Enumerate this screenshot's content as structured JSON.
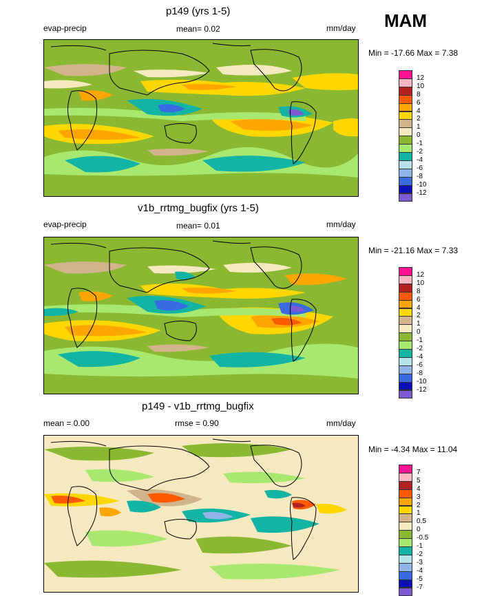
{
  "season": "MAM",
  "colors": {
    "m12": "#7b5ad2",
    "m10": "#0a10b4",
    "m8": "#3a6ae0",
    "m6": "#8fb4e8",
    "m4": "#b7e2e8",
    "m2": "#14b4a4",
    "m1": "#a8e870",
    "z": "#8ab833",
    "p0": "#f6e8bf",
    "p1": "#d2b48c",
    "p2": "#ffd700",
    "p4": "#ffa500",
    "p6": "#ff5a00",
    "p8": "#b22222",
    "p10": "#ffb6c1",
    "p12": "#ff1493"
  },
  "panels": [
    {
      "title": "p149 (yrs 1-5)",
      "left": "evap-precip",
      "center": "mean=  0.02",
      "right": "mm/day",
      "minmax": "Min = -17.66 Max =   7.38",
      "colorbar": {
        "labels": [
          "12",
          "10",
          "8",
          "6",
          "4",
          "2",
          "1",
          "0",
          "-1",
          "-2",
          "-4",
          "-6",
          "-8",
          "-10",
          "-12"
        ],
        "colors": [
          "#ff1493",
          "#ffb6c1",
          "#b22222",
          "#ff5a00",
          "#ffa500",
          "#ffd700",
          "#d2b48c",
          "#f6e8bf",
          "#8ab833",
          "#a8e870",
          "#14b4a4",
          "#b7e2e8",
          "#8fb4e8",
          "#3a6ae0",
          "#0a10b4",
          "#7b5ad2"
        ]
      }
    },
    {
      "title": "v1b_rrtmg_bugfix (yrs 1-5)",
      "left": "evap-precip",
      "center": "mean=  0.01",
      "right": "mm/day",
      "minmax": "Min = -21.16 Max =   7.33",
      "colorbar": {
        "labels": [
          "12",
          "10",
          "8",
          "6",
          "4",
          "2",
          "1",
          "0",
          "-1",
          "-2",
          "-4",
          "-6",
          "-8",
          "-10",
          "-12"
        ],
        "colors": [
          "#ff1493",
          "#ffb6c1",
          "#b22222",
          "#ff5a00",
          "#ffa500",
          "#ffd700",
          "#d2b48c",
          "#f6e8bf",
          "#8ab833",
          "#a8e870",
          "#14b4a4",
          "#b7e2e8",
          "#8fb4e8",
          "#3a6ae0",
          "#0a10b4",
          "#7b5ad2"
        ]
      }
    },
    {
      "title": "p149 - v1b_rrtmg_bugfix",
      "left": "mean =   0.00",
      "center": "rmse =   0.90",
      "right": "mm/day",
      "minmax": "Min =  -4.34 Max = 11.04",
      "colorbar": {
        "labels": [
          "7",
          "5",
          "4",
          "3",
          "2",
          "1",
          "0.5",
          "0",
          "-0.5",
          "-1",
          "-2",
          "-3",
          "-4",
          "-5",
          "-7"
        ],
        "colors": [
          "#ff1493",
          "#ffb6c1",
          "#b22222",
          "#ff5a00",
          "#ffa500",
          "#ffd700",
          "#d2b48c",
          "#f6e8bf",
          "#8ab833",
          "#a8e870",
          "#14b4a4",
          "#b7e2e8",
          "#8fb4e8",
          "#3a6ae0",
          "#0a10b4",
          "#7b5ad2"
        ]
      }
    }
  ]
}
